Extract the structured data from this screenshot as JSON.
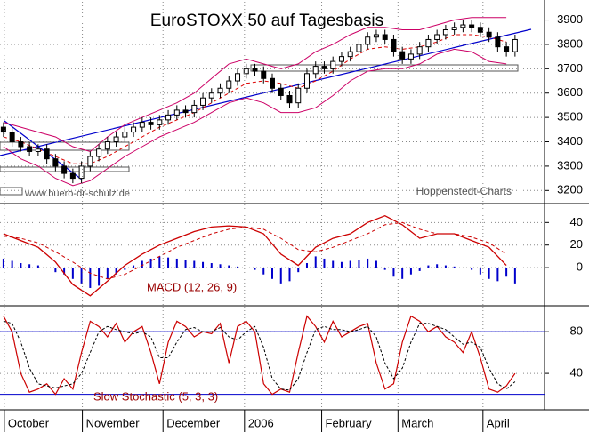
{
  "chart_data": [
    {
      "type": "candlestick",
      "title": "EuroSTOXX 50 auf Tagesbasis",
      "annotations": [
        "www.buero-dr-schulz.de",
        "Hoppenstedt-Charts"
      ],
      "xlim": [
        -0.4,
        62.4
      ],
      "ylim": [
        3150,
        3975
      ],
      "yticks": [
        3200,
        3300,
        3400,
        3500,
        3600,
        3700,
        3800,
        3900
      ],
      "grid": true,
      "x": [
        0,
        1,
        2,
        3,
        4,
        5,
        6,
        7,
        8,
        9,
        10,
        11,
        12,
        13,
        14,
        15,
        16,
        17,
        18,
        19,
        20,
        21,
        22,
        23,
        24,
        25,
        26,
        27,
        28,
        29,
        30,
        31,
        32,
        33,
        34,
        35,
        36,
        37,
        38,
        39,
        40,
        41,
        42,
        43,
        44,
        45,
        46,
        47,
        48,
        49,
        50,
        51,
        52,
        53,
        54,
        55,
        56,
        57,
        58,
        59
      ],
      "open": [
        3460,
        3440,
        3400,
        3380,
        3360,
        3370,
        3330,
        3300,
        3270,
        3250,
        3300,
        3340,
        3370,
        3400,
        3420,
        3440,
        3460,
        3480,
        3470,
        3490,
        3510,
        3530,
        3520,
        3550,
        3580,
        3600,
        3620,
        3650,
        3680,
        3700,
        3690,
        3660,
        3620,
        3590,
        3560,
        3620,
        3680,
        3710,
        3700,
        3730,
        3750,
        3770,
        3800,
        3830,
        3840,
        3820,
        3770,
        3740,
        3760,
        3790,
        3820,
        3840,
        3860,
        3870,
        3880,
        3870,
        3850,
        3830,
        3790,
        3770
      ],
      "high": [
        3480,
        3460,
        3420,
        3400,
        3390,
        3390,
        3350,
        3320,
        3290,
        3320,
        3360,
        3390,
        3420,
        3440,
        3460,
        3480,
        3500,
        3500,
        3510,
        3530,
        3550,
        3550,
        3570,
        3600,
        3620,
        3640,
        3670,
        3700,
        3720,
        3720,
        3710,
        3680,
        3640,
        3610,
        3640,
        3700,
        3730,
        3730,
        3750,
        3770,
        3790,
        3820,
        3850,
        3860,
        3860,
        3840,
        3790,
        3780,
        3810,
        3840,
        3860,
        3880,
        3890,
        3900,
        3900,
        3890,
        3870,
        3850,
        3810,
        3840
      ],
      "low": [
        3420,
        3380,
        3360,
        3340,
        3340,
        3310,
        3280,
        3250,
        3230,
        3230,
        3280,
        3320,
        3350,
        3380,
        3400,
        3420,
        3440,
        3450,
        3450,
        3470,
        3490,
        3500,
        3500,
        3530,
        3560,
        3580,
        3600,
        3630,
        3660,
        3670,
        3640,
        3600,
        3570,
        3540,
        3540,
        3600,
        3660,
        3680,
        3680,
        3710,
        3730,
        3750,
        3780,
        3810,
        3800,
        3750,
        3720,
        3720,
        3740,
        3770,
        3800,
        3820,
        3840,
        3850,
        3850,
        3830,
        3810,
        3770,
        3750,
        3750
      ],
      "close": [
        3440,
        3400,
        3380,
        3360,
        3370,
        3330,
        3300,
        3270,
        3250,
        3300,
        3340,
        3370,
        3400,
        3420,
        3440,
        3460,
        3480,
        3470,
        3490,
        3510,
        3530,
        3520,
        3550,
        3580,
        3600,
        3620,
        3650,
        3680,
        3700,
        3690,
        3660,
        3620,
        3590,
        3560,
        3620,
        3680,
        3710,
        3700,
        3730,
        3750,
        3770,
        3800,
        3830,
        3840,
        3820,
        3770,
        3740,
        3760,
        3790,
        3820,
        3840,
        3860,
        3870,
        3880,
        3870,
        3850,
        3830,
        3790,
        3770,
        3820
      ],
      "band_x": [
        0,
        2,
        4,
        6,
        8,
        10,
        12,
        14,
        16,
        18,
        20,
        22,
        24,
        26,
        28,
        30,
        32,
        34,
        36,
        38,
        40,
        42,
        44,
        46,
        48,
        50,
        52,
        54,
        56,
        58
      ],
      "upper_band": [
        3480,
        3460,
        3440,
        3420,
        3380,
        3360,
        3420,
        3470,
        3500,
        3530,
        3560,
        3600,
        3660,
        3720,
        3740,
        3720,
        3700,
        3720,
        3770,
        3800,
        3840,
        3870,
        3870,
        3860,
        3860,
        3880,
        3900,
        3910,
        3910,
        3910
      ],
      "middle_band": [
        3420,
        3400,
        3370,
        3340,
        3310,
        3310,
        3340,
        3380,
        3420,
        3460,
        3490,
        3520,
        3560,
        3600,
        3640,
        3650,
        3640,
        3620,
        3650,
        3690,
        3740,
        3780,
        3790,
        3780,
        3790,
        3810,
        3840,
        3840,
        3830,
        3810
      ],
      "lower_band": [
        3380,
        3330,
        3300,
        3250,
        3220,
        3240,
        3290,
        3340,
        3380,
        3420,
        3450,
        3480,
        3520,
        3560,
        3580,
        3560,
        3520,
        3520,
        3540,
        3590,
        3650,
        3690,
        3700,
        3700,
        3720,
        3760,
        3780,
        3770,
        3730,
        3720
      ],
      "band_color": "#cc0066",
      "middle_color": "#dd0000"
    },
    {
      "type": "macd",
      "label": "MACD (12, 26, 9)",
      "xlim": [
        -0.4,
        62.4
      ],
      "ylim": [
        -33,
        56
      ],
      "yticks": [
        0,
        20,
        40
      ],
      "grid": true,
      "line_x": [
        0,
        2,
        4,
        6,
        8,
        10,
        12,
        14,
        16,
        18,
        20,
        22,
        24,
        26,
        28,
        30,
        32,
        34,
        36,
        38,
        40,
        42,
        44,
        46,
        48,
        50,
        52,
        54,
        56,
        58
      ],
      "macd": [
        30,
        24,
        18,
        5,
        -15,
        -25,
        -12,
        2,
        12,
        20,
        26,
        32,
        36,
        37,
        36,
        30,
        12,
        2,
        18,
        26,
        30,
        40,
        46,
        38,
        26,
        30,
        30,
        24,
        18,
        2
      ],
      "signal": [
        28,
        26,
        22,
        14,
        5,
        -5,
        -10,
        -6,
        2,
        10,
        18,
        24,
        30,
        34,
        36,
        34,
        26,
        16,
        14,
        18,
        24,
        30,
        38,
        40,
        34,
        30,
        30,
        27,
        22,
        12
      ],
      "x": [
        0,
        1,
        2,
        3,
        4,
        5,
        6,
        7,
        8,
        9,
        10,
        11,
        12,
        13,
        14,
        15,
        16,
        17,
        18,
        19,
        20,
        21,
        22,
        23,
        24,
        25,
        26,
        27,
        28,
        29,
        30,
        31,
        32,
        33,
        34,
        35,
        36,
        37,
        38,
        39,
        40,
        41,
        42,
        43,
        44,
        45,
        46,
        47,
        48,
        49,
        50,
        51,
        52,
        53,
        54,
        55,
        56,
        57,
        58,
        59
      ],
      "histogram": [
        8,
        6,
        4,
        3,
        2,
        0,
        -4,
        -6,
        -10,
        -14,
        -18,
        -16,
        -10,
        -6,
        -2,
        2,
        6,
        8,
        10,
        9,
        8,
        7,
        6,
        5,
        4,
        3,
        2,
        1,
        0,
        -2,
        -6,
        -10,
        -14,
        -12,
        -4,
        4,
        10,
        8,
        6,
        5,
        6,
        7,
        8,
        6,
        -2,
        -8,
        -10,
        -6,
        -3,
        2,
        3,
        2,
        1,
        0,
        -2,
        -6,
        -10,
        -12,
        -8,
        -14
      ],
      "line_color": "#cc0000",
      "histogram_color": "#0000cc"
    },
    {
      "type": "stochastic",
      "label": "Slow Stochastic (5, 3, 3)",
      "xlim": [
        -0.4,
        62.4
      ],
      "ylim": [
        6,
        104
      ],
      "yticks": [
        40,
        80
      ],
      "grid": true,
      "levels": [
        80,
        20
      ],
      "xticks": [
        {
          "value": 0.1,
          "label": "October"
        },
        {
          "value": 9.1,
          "label": "November"
        },
        {
          "value": 18.4,
          "label": "December"
        },
        {
          "value": 27.8,
          "label": "2006"
        },
        {
          "value": 36.7,
          "label": "February"
        },
        {
          "value": 45.5,
          "label": "March"
        },
        {
          "value": 55.3,
          "label": "April"
        }
      ],
      "x": [
        0,
        1,
        2,
        3,
        4,
        5,
        6,
        7,
        8,
        9,
        10,
        11,
        12,
        13,
        14,
        15,
        16,
        17,
        18,
        19,
        20,
        21,
        22,
        23,
        24,
        25,
        26,
        27,
        28,
        29,
        30,
        31,
        32,
        33,
        34,
        35,
        36,
        37,
        38,
        39,
        40,
        41,
        42,
        43,
        44,
        45,
        46,
        47,
        48,
        49,
        50,
        51,
        52,
        53,
        54,
        55,
        56,
        57,
        58,
        59
      ],
      "k": [
        95,
        80,
        40,
        22,
        25,
        30,
        20,
        35,
        25,
        60,
        90,
        85,
        75,
        88,
        70,
        80,
        85,
        60,
        30,
        70,
        90,
        85,
        75,
        80,
        78,
        88,
        50,
        85,
        90,
        80,
        30,
        20,
        25,
        22,
        60,
        95,
        85,
        70,
        90,
        75,
        80,
        85,
        88,
        50,
        25,
        30,
        70,
        95,
        90,
        80,
        85,
        75,
        70,
        60,
        80,
        55,
        25,
        22,
        28,
        40
      ],
      "d": [
        90,
        88,
        70,
        45,
        30,
        28,
        26,
        28,
        30,
        40,
        60,
        80,
        85,
        82,
        80,
        78,
        80,
        75,
        55,
        55,
        70,
        82,
        84,
        80,
        80,
        84,
        75,
        72,
        80,
        85,
        65,
        35,
        25,
        24,
        35,
        60,
        82,
        85,
        82,
        82,
        80,
        82,
        85,
        75,
        50,
        35,
        45,
        70,
        88,
        88,
        85,
        82,
        75,
        68,
        70,
        65,
        45,
        30,
        25,
        32
      ],
      "line_color": "#cc0000",
      "level_color": "#0000cc"
    }
  ]
}
